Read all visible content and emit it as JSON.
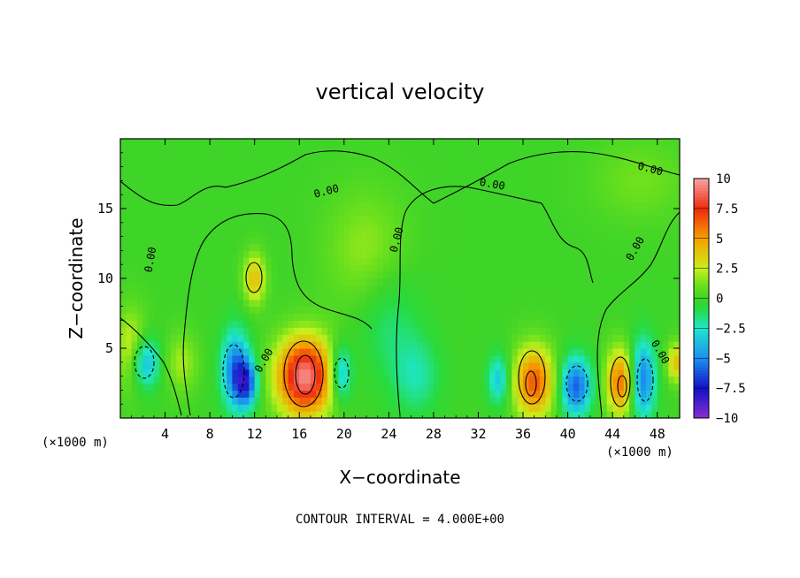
{
  "chart_data": {
    "type": "heatmap",
    "title": "vertical velocity",
    "xlabel": "X−coordinate",
    "ylabel": "Z−coordinate",
    "x_unit": "(×1000 m)",
    "x_unit_right": "(×1000 m)",
    "note": "CONTOUR INTERVAL = 4.000E+00",
    "xlim": [
      0,
      50
    ],
    "ylim": [
      0,
      20
    ],
    "x_ticks": [
      {
        "value": 4,
        "label": "4"
      },
      {
        "value": 8,
        "label": "8"
      },
      {
        "value": 12,
        "label": "12"
      },
      {
        "value": 16,
        "label": "16"
      },
      {
        "value": 20,
        "label": "20"
      },
      {
        "value": 24,
        "label": "24"
      },
      {
        "value": 28,
        "label": "28"
      },
      {
        "value": 32,
        "label": "32"
      },
      {
        "value": 36,
        "label": "36"
      },
      {
        "value": 40,
        "label": "40"
      },
      {
        "value": 44,
        "label": "44"
      },
      {
        "value": 48,
        "label": "48"
      }
    ],
    "y_ticks": [
      {
        "value": 5,
        "label": "5"
      },
      {
        "value": 10,
        "label": "10"
      },
      {
        "value": 15,
        "label": "15"
      }
    ],
    "colorbar": {
      "min": -10,
      "max": 10,
      "ticks": [
        {
          "value": 10,
          "label": "10"
        },
        {
          "value": 7.5,
          "label": "7.5"
        },
        {
          "value": 5,
          "label": "5"
        },
        {
          "value": 2.5,
          "label": "2.5"
        },
        {
          "value": 0,
          "label": "0"
        },
        {
          "value": -2.5,
          "label": "−2.5"
        },
        {
          "value": -5,
          "label": "−5"
        },
        {
          "value": -7.5,
          "label": "−7.5"
        },
        {
          "value": -10,
          "label": "−10"
        }
      ],
      "colors": [
        "#f6a3a3",
        "#ef2a0e",
        "#f6a000",
        "#c8ef1c",
        "#2fd41e",
        "#1ee6cc",
        "#1c8ff0",
        "#1212c8",
        "#8a2ed0"
      ]
    },
    "contour_labels": [
      {
        "text": "0.00",
        "x": 3,
        "y": 11.3,
        "angle": -80
      },
      {
        "text": "0.00",
        "x": 13.1,
        "y": 4.0,
        "angle": -60
      },
      {
        "text": "0.00",
        "x": 18.5,
        "y": 16.0,
        "angle": -15
      },
      {
        "text": "0.00",
        "x": 25.0,
        "y": 12.7,
        "angle": -75
      },
      {
        "text": "0.00",
        "x": 33.2,
        "y": 16.5,
        "angle": 10
      },
      {
        "text": "0.00",
        "x": 47.3,
        "y": 17.6,
        "angle": 15
      },
      {
        "text": "0.00",
        "x": 46.3,
        "y": 12.0,
        "angle": -60
      },
      {
        "text": "0.00",
        "x": 48.0,
        "y": 4.6,
        "angle": 60
      }
    ],
    "field_features": [
      {
        "type": "updraft",
        "x": 16.5,
        "z": 3.0,
        "peak": 9.5,
        "sx": 1.8,
        "sz": 2.0
      },
      {
        "type": "updraft",
        "x": 37.0,
        "z": 2.6,
        "peak": 6.5,
        "sx": 1.3,
        "sz": 1.8
      },
      {
        "type": "updraft",
        "x": 44.7,
        "z": 2.6,
        "peak": 6.0,
        "sx": 0.9,
        "sz": 1.7
      },
      {
        "type": "updraft",
        "x": 12.0,
        "z": 10.0,
        "peak": 4.0,
        "sx": 0.7,
        "sz": 1.3
      },
      {
        "type": "updraft",
        "x": 1.0,
        "z": 5.0,
        "peak": 3.0,
        "sx": 1.0,
        "sz": 2.0
      },
      {
        "type": "updraft",
        "x": 5.5,
        "z": 4.0,
        "peak": 2.0,
        "sx": 1.0,
        "sz": 1.5
      },
      {
        "type": "updraft",
        "x": 49.7,
        "z": 4.0,
        "peak": 4.0,
        "sx": 0.6,
        "sz": 1.0
      },
      {
        "type": "updraft",
        "x": 22.0,
        "z": 12.0,
        "peak": 1.8,
        "sx": 2.5,
        "sz": 3.0
      },
      {
        "type": "updraft",
        "x": 46.5,
        "z": 17.0,
        "peak": 1.2,
        "sx": 3.0,
        "sz": 2.0
      },
      {
        "type": "downdraft",
        "x": 2.2,
        "z": 4.0,
        "peak": -4.5,
        "sx": 0.9,
        "sz": 1.3
      },
      {
        "type": "downdraft",
        "x": 10.3,
        "z": 3.5,
        "peak": -5.5,
        "sx": 0.9,
        "sz": 2.0
      },
      {
        "type": "downdraft",
        "x": 11.3,
        "z": 2.5,
        "peak": -5.5,
        "sx": 0.7,
        "sz": 1.2
      },
      {
        "type": "downdraft",
        "x": 19.7,
        "z": 3.2,
        "peak": -4.5,
        "sx": 0.7,
        "sz": 1.4
      },
      {
        "type": "downdraft",
        "x": 24.0,
        "z": 7.0,
        "peak": -1.5,
        "sx": 2.0,
        "sz": 3.0
      },
      {
        "type": "downdraft",
        "x": 26.5,
        "z": 3.0,
        "peak": -2.0,
        "sx": 1.5,
        "sz": 2.0
      },
      {
        "type": "downdraft",
        "x": 33.8,
        "z": 2.8,
        "peak": -3.5,
        "sx": 0.7,
        "sz": 1.3
      },
      {
        "type": "downdraft",
        "x": 40.7,
        "z": 2.3,
        "peak": -6.0,
        "sx": 1.0,
        "sz": 1.5
      },
      {
        "type": "downdraft",
        "x": 46.7,
        "z": 2.8,
        "peak": -5.5,
        "sx": 0.8,
        "sz": 2.0
      }
    ]
  }
}
